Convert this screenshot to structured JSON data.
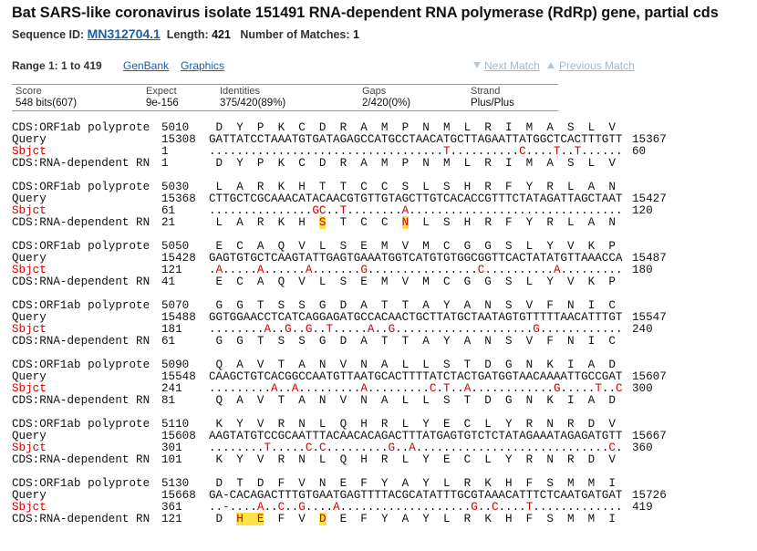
{
  "header": {
    "title": "Bat SARS-like coronavirus isolate 151491 RNA-dependent RNA polymerase (RdRp) gene, partial cds",
    "seq_id_label": "Sequence ID:",
    "seq_id": "MN312704.1",
    "length_label": "Length:",
    "length": 421,
    "matches_label": "Number of Matches:",
    "matches": 1
  },
  "range": {
    "label": "Range 1: 1 to 419",
    "links": [
      "GenBank",
      "Graphics"
    ],
    "nav": [
      "Next Match",
      "Previous Match"
    ]
  },
  "stats": {
    "headers": [
      "Score",
      "Expect",
      "Identities",
      "Gaps",
      "Strand"
    ],
    "values": [
      "548 bits(607)",
      "9e-156",
      "375/420(89%)",
      "2/420(0%)",
      "Plus/Plus"
    ]
  },
  "highlight_color": "#ffe14a",
  "subject_color": "#d00000",
  "blocks": [
    {
      "rows": [
        {
          "label": "CDS:ORF1ab polyprote",
          "start": 5010,
          "seq": " D  Y  P  K  C  D  R  A  M  P  N  M  L  R  I  M  A  S  L  V"
        },
        {
          "label": "Query",
          "start": 15308,
          "seq": "GATTATCCTAAATGTGATAGAGCCATGCCTAACATGCTTAGAATTATGGCTCACTTTGTT",
          "end": 15367
        },
        {
          "label": "Sbjct",
          "start": 1,
          "seq": "..................................T..........C....T..T......",
          "end": 60,
          "subject": true
        },
        {
          "label": "CDS:RNA-dependent RN",
          "start": 1,
          "seq": " D  Y  P  K  C  D  R  A  M  P  N  M  L  R  I  M  A  S  L  V"
        }
      ]
    },
    {
      "rows": [
        {
          "label": "CDS:ORF1ab polyprote",
          "start": 5030,
          "seq": " L  A  R  K  H  T  T  C  C  S  L  S  H  R  F  Y  R  L  A  N"
        },
        {
          "label": "Query",
          "start": 15368,
          "seq": "CTTGCTCGCAAACATACAACGTGTTGTAGCTTGTCACACCGTTTCTATAGATTAGCTAAT",
          "end": 15427
        },
        {
          "label": "Sbjct",
          "start": 61,
          "seq": "...............GC..T........A...............................",
          "end": 120,
          "subject": true
        },
        {
          "label": "CDS:RNA-dependent RN",
          "start": 21,
          "seq": [
            {
              "text": " L  A  R  K  H  "
            },
            {
              "text": "S",
              "highlight": true
            },
            {
              "text": "  T  C  C  "
            },
            {
              "text": "N",
              "highlight": true
            },
            {
              "text": "  L  S  H  R  F  Y  R  L  A  N"
            }
          ]
        }
      ]
    },
    {
      "rows": [
        {
          "label": "CDS:ORF1ab polyprote",
          "start": 5050,
          "seq": " E  C  A  Q  V  L  S  E  M  V  M  C  G  G  S  L  Y  V  K  P"
        },
        {
          "label": "Query",
          "start": 15428,
          "seq": "GAGTGTGCTCAAGTATTGAGTGAAATGGTCATGTGTGGCGGTTCACTATATGTTAAACCA",
          "end": 15487
        },
        {
          "label": "Sbjct",
          "start": 121,
          "seq": ".A.....A......A.......G................C..........A.........",
          "end": 180,
          "subject": true
        },
        {
          "label": "CDS:RNA-dependent RN",
          "start": 41,
          "seq": " E  C  A  Q  V  L  S  E  M  V  M  C  G  G  S  L  Y  V  K  P"
        }
      ]
    },
    {
      "rows": [
        {
          "label": "CDS:ORF1ab polyprote",
          "start": 5070,
          "seq": " G  G  T  S  S  G  D  A  T  T  A  Y  A  N  S  V  F  N  I  C"
        },
        {
          "label": "Query",
          "start": 15488,
          "seq": "GGTGGAACCTCATCAGGAGATGCCACAACTGCTTATGCTAATAGTGTTTTTAACATTTGT",
          "end": 15547
        },
        {
          "label": "Sbjct",
          "start": 181,
          "seq": "........A..G..G..T.....A..G....................G............",
          "end": 240,
          "subject": true
        },
        {
          "label": "CDS:RNA-dependent RN",
          "start": 61,
          "seq": " G  G  T  S  S  G  D  A  T  T  A  Y  A  N  S  V  F  N  I  C"
        }
      ]
    },
    {
      "rows": [
        {
          "label": "CDS:ORF1ab polyprote",
          "start": 5090,
          "seq": " Q  A  V  T  A  N  V  N  A  L  L  S  T  D  G  N  K  I  A  D"
        },
        {
          "label": "Query",
          "start": 15548,
          "seq": "CAAGCTGTCACGGCCAATGTTAATGCACTTTTATCTACTGATGGTAACAAAATTGCCGAT",
          "end": 15607
        },
        {
          "label": "Sbjct",
          "start": 241,
          "seq": ".........A..A.........A.........C.T..A............G.....T..C",
          "end": 300,
          "subject": true
        },
        {
          "label": "CDS:RNA-dependent RN",
          "start": 81,
          "seq": " Q  A  V  T  A  N  V  N  A  L  L  S  T  D  G  N  K  I  A  D"
        }
      ]
    },
    {
      "rows": [
        {
          "label": "CDS:ORF1ab polyprote",
          "start": 5110,
          "seq": " K  Y  V  R  N  L  Q  H  R  L  Y  E  C  L  Y  R  N  R  D  V"
        },
        {
          "label": "Query",
          "start": 15608,
          "seq": "AAGTATGTCCGCAATTTACAACACAGACTTTATGAGTGTCTCTATAGAAATAGAGATGTT",
          "end": 15667
        },
        {
          "label": "Sbjct",
          "start": 301,
          "seq": "........T.....C.C.........G..A............................C.",
          "end": 360,
          "subject": true
        },
        {
          "label": "CDS:RNA-dependent RN",
          "start": 101,
          "seq": " K  Y  V  R  N  L  Q  H  R  L  Y  E  C  L  Y  R  N  R  D  V"
        }
      ]
    },
    {
      "rows": [
        {
          "label": "CDS:ORF1ab polyprote",
          "start": 5130,
          "seq": " D  T  D  F  V  N  E  F  Y  A  Y  L  R  K  H  F  S  M  M  I"
        },
        {
          "label": "Query",
          "start": 15668,
          "seq": "GA-CACAGACTTTGTGAATGAGTTTTACGCATATTTGCGTAAACATTTCTCAATGATGAT",
          "end": 15726
        },
        {
          "label": "Sbjct",
          "start": 361,
          "seq": "..-....A..C..G....A...................G..C....T.............",
          "end": 419,
          "subject": true
        },
        {
          "label": "CDS:RNA-dependent RN",
          "start": 121,
          "seq": [
            {
              "text": " D  "
            },
            {
              "text": "H  E",
              "highlight": true
            },
            {
              "text": "  F  V  "
            },
            {
              "text": "D",
              "highlight": true
            },
            {
              "text": "  E  F  Y  A  Y  L  R  K  H  F  S  M  M  I"
            }
          ]
        }
      ]
    }
  ]
}
